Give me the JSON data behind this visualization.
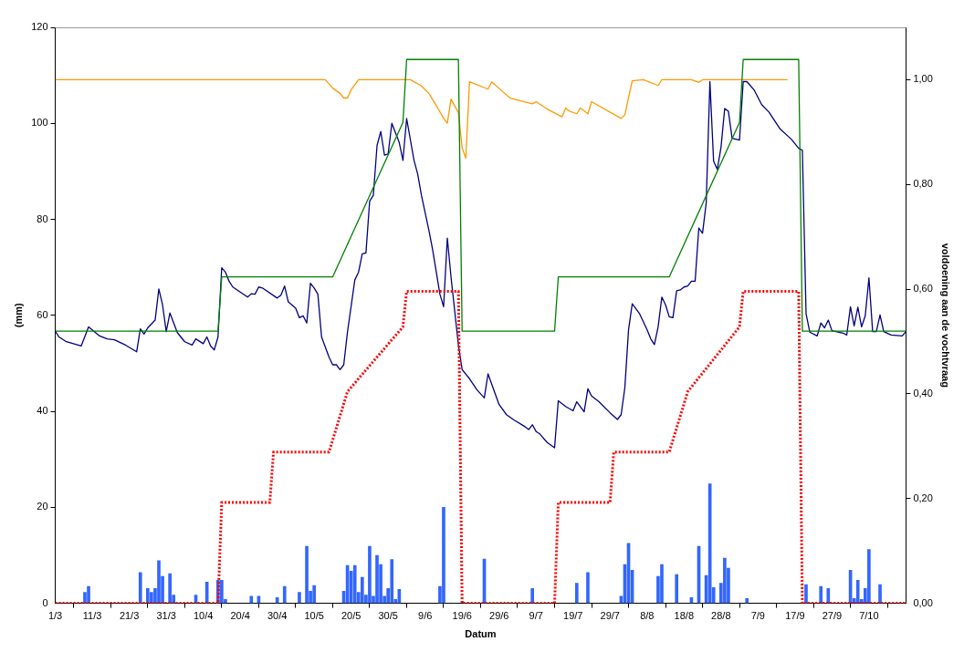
{
  "chart_data": {
    "type": "line",
    "xlabel": "Datum",
    "ylabel": "(mm)",
    "y2label": "voldoening aan de vochtvraag",
    "legend": false,
    "grid": false,
    "marker": "none",
    "xlim": [
      "--03-01",
      "--10-17"
    ],
    "xticks": [
      {
        "value": "--03-01",
        "label": "1/3"
      },
      {
        "value": "--03-11",
        "label": "11/3"
      },
      {
        "value": "--03-21",
        "label": "21/3"
      },
      {
        "value": "--03-31",
        "label": "31/3"
      },
      {
        "value": "--04-10",
        "label": "10/4"
      },
      {
        "value": "--04-20",
        "label": "20/4"
      },
      {
        "value": "--04-30",
        "label": "30/4"
      },
      {
        "value": "--05-10",
        "label": "10/5"
      },
      {
        "value": "--05-20",
        "label": "20/5"
      },
      {
        "value": "--05-30",
        "label": "30/5"
      },
      {
        "value": "--06-09",
        "label": "9/6"
      },
      {
        "value": "--06-19",
        "label": "19/6"
      },
      {
        "value": "--06-29",
        "label": "29/6"
      },
      {
        "value": "--07-09",
        "label": "9/7"
      },
      {
        "value": "--07-19",
        "label": "19/7"
      },
      {
        "value": "--07-29",
        "label": "29/7"
      },
      {
        "value": "--08-08",
        "label": "8/8"
      },
      {
        "value": "--08-18",
        "label": "18/8"
      },
      {
        "value": "--08-28",
        "label": "28/8"
      },
      {
        "value": "--09-07",
        "label": "7/9"
      },
      {
        "value": "--09-17",
        "label": "17/9"
      },
      {
        "value": "--09-27",
        "label": "27/9"
      },
      {
        "value": "--10-07",
        "label": "7/10"
      }
    ],
    "ylim": [
      0,
      120
    ],
    "yticks": [
      0,
      20,
      40,
      60,
      80,
      100,
      120
    ],
    "y2lim": [
      0,
      1.1
    ],
    "y2ticks": [
      {
        "value": 0,
        "label": "0,00"
      },
      {
        "value": 0.2,
        "label": "0,20"
      },
      {
        "value": 0.4,
        "label": "0,40"
      },
      {
        "value": 0.6,
        "label": "0,60"
      },
      {
        "value": 0.8,
        "label": "0,80"
      },
      {
        "value": 1,
        "label": "1,00"
      }
    ],
    "series": [
      {
        "type": "bar",
        "color": "#3366ff",
        "x": [
          "--03-09",
          "--03-10",
          "--03-24",
          "--03-26",
          "--03-27",
          "--03-28",
          "--03-29",
          "--03-30",
          "--04-01",
          "--04-02",
          "--04-08",
          "--04-11",
          "--04-14",
          "--04-15",
          "--04-16",
          "--04-23",
          "--04-25",
          "--04-30",
          "--05-02",
          "--05-06",
          "--05-08",
          "--05-09",
          "--05-10",
          "--05-18",
          "--05-19",
          "--05-20",
          "--05-21",
          "--05-22",
          "--05-23",
          "--05-24",
          "--05-25",
          "--05-26",
          "--05-27",
          "--05-28",
          "--05-29",
          "--05-30",
          "--05-31",
          "--06-01",
          "--06-02",
          "--06-13",
          "--06-14",
          "--06-25",
          "--07-08",
          "--07-20",
          "--07-23",
          "--08-01",
          "--08-02",
          "--08-03",
          "--08-04",
          "--08-11",
          "--08-12",
          "--08-16",
          "--08-20",
          "--08-22",
          "--08-24",
          "--08-25",
          "--08-26",
          "--08-28",
          "--08-29",
          "--08-30",
          "--09-04",
          "--09-20",
          "--09-24",
          "--09-26",
          "--10-02",
          "--10-03",
          "--10-04",
          "--10-05",
          "--10-06",
          "--10-07",
          "--10-10"
        ],
        "values": [
          2.3,
          3.5,
          6.4,
          3.1,
          2.3,
          3.1,
          8.9,
          5.6,
          6.2,
          1.7,
          1.7,
          4.4,
          4.8,
          4.8,
          0.8,
          1.5,
          1.5,
          1.2,
          3.5,
          2.3,
          11.9,
          2.5,
          3.7,
          2.5,
          7.9,
          6.7,
          7.9,
          2.3,
          5.4,
          1.7,
          11.9,
          1.5,
          10.0,
          8.1,
          1.5,
          3.1,
          9.1,
          0.8,
          2.9,
          3.5,
          20.0,
          9.2,
          3.1,
          4.2,
          6.4,
          1.5,
          8.1,
          12.5,
          6.9,
          5.6,
          8.1,
          6.0,
          1.2,
          11.9,
          5.8,
          24.9,
          3.3,
          4.2,
          9.4,
          7.3,
          1.0,
          3.9,
          3.5,
          3.1,
          6.9,
          1.0,
          4.8,
          0.8,
          3.1,
          11.2,
          3.9
        ]
      },
      {
        "color": "#008000",
        "line_style": "solid",
        "x": [
          "--03-01",
          "--04-14",
          "--04-15",
          "--05-15",
          "--06-03",
          "--06-04",
          "--06-18",
          "--06-19",
          "--07-14",
          "--07-15",
          "--08-14",
          "--09-02",
          "--09-03",
          "--09-18",
          "--09-19",
          "--10-17"
        ],
        "values": [
          56.7,
          56.7,
          68,
          68,
          100.2,
          113.3,
          113.3,
          56.7,
          56.7,
          68,
          68,
          100.2,
          113.3,
          113.3,
          56.7,
          56.7
        ]
      },
      {
        "color": "#ff0000",
        "line_style": "dotted",
        "x": [
          "--03-01",
          "--04-14",
          "--04-15",
          "--04-28",
          "--04-29",
          "--05-14",
          "--05-19",
          "--06-03",
          "--06-04",
          "--06-18",
          "--06-19",
          "--07-14",
          "--07-15",
          "--07-29",
          "--07-30",
          "--08-14",
          "--08-19",
          "--09-02",
          "--09-03",
          "--09-18",
          "--09-19",
          "--10-17"
        ],
        "values": [
          0,
          0,
          21,
          21,
          31.5,
          31.5,
          44.1,
          57.6,
          65,
          65,
          0,
          0,
          21,
          21,
          31.5,
          31.5,
          44.1,
          57.6,
          65,
          65,
          0,
          0
        ]
      },
      {
        "color": "#000080",
        "line_style": "solid",
        "x": [
          "--03-01",
          "--03-02",
          "--03-04",
          "--03-08",
          "--03-10",
          "--03-13",
          "--03-15",
          "--03-17",
          "--03-20",
          "--03-23",
          "--03-24",
          "--03-25",
          "--03-26",
          "--03-28",
          "--03-29",
          "--03-30",
          "--03-31",
          "--04-01",
          "--04-03",
          "--04-05",
          "--04-07",
          "--04-08",
          "--04-10",
          "--04-11",
          "--04-12",
          "--04-13",
          "--04-14",
          "--04-15",
          "--04-16",
          "--04-17",
          "--04-18",
          "--04-22",
          "--04-23",
          "--04-24",
          "--04-25",
          "--04-26",
          "--04-30",
          "--05-01",
          "--05-02",
          "--05-03",
          "--05-05",
          "--05-06",
          "--05-07",
          "--05-08",
          "--05-09",
          "--05-10",
          "--05-11",
          "--05-12",
          "--05-14",
          "--05-15",
          "--05-16",
          "--05-17",
          "--05-18",
          "--05-19",
          "--05-21",
          "--05-22",
          "--05-23",
          "--05-24",
          "--05-25",
          "--05-26",
          "--05-27",
          "--05-28",
          "--05-29",
          "--05-30",
          "--05-31",
          "--06-02",
          "--06-03",
          "--06-04",
          "--06-06",
          "--06-07",
          "--06-08",
          "--06-10",
          "--06-11",
          "--06-13",
          "--06-14",
          "--06-15",
          "--06-16",
          "--06-18",
          "--06-19",
          "--06-21",
          "--06-23",
          "--06-25",
          "--06-26",
          "--06-29",
          "--07-01",
          "--07-03",
          "--07-06",
          "--07-07",
          "--07-08",
          "--07-09",
          "--07-10",
          "--07-12",
          "--07-14",
          "--07-15",
          "--07-17",
          "--07-19",
          "--07-20",
          "--07-22",
          "--07-23",
          "--07-24",
          "--07-26",
          "--07-29",
          "--07-31",
          "--08-01",
          "--08-02",
          "--08-03",
          "--08-04",
          "--08-06",
          "--08-08",
          "--08-09",
          "--08-10",
          "--08-11",
          "--08-12",
          "--08-13",
          "--08-14",
          "--08-15",
          "--08-16",
          "--08-17",
          "--08-18",
          "--08-19",
          "--08-20",
          "--08-21",
          "--08-22",
          "--08-23",
          "--08-24",
          "--08-25",
          "--08-26",
          "--08-27",
          "--08-28",
          "--08-29",
          "--08-30",
          "--08-31",
          "--09-02",
          "--09-03",
          "--09-04",
          "--09-06",
          "--09-08",
          "--09-10",
          "--09-13",
          "--09-16",
          "--09-18",
          "--09-19",
          "--09-20",
          "--09-21",
          "--09-23",
          "--09-24",
          "--09-25",
          "--09-26",
          "--09-27",
          "--09-30",
          "--10-01",
          "--10-02",
          "--10-03",
          "--10-04",
          "--10-05",
          "--10-06",
          "--10-07",
          "--10-08",
          "--10-09",
          "--10-10",
          "--10-11",
          "--10-13",
          "--10-16",
          "--10-17"
        ],
        "values": [
          56.7,
          55.5,
          54.5,
          53.6,
          57.6,
          55.7,
          55.1,
          54.9,
          53.8,
          52.4,
          57.2,
          56.1,
          57.4,
          59.0,
          65.5,
          62.2,
          56.6,
          60.5,
          56.4,
          54.5,
          53.8,
          55.1,
          54.1,
          55.5,
          53.6,
          52.8,
          55.5,
          69.9,
          69.0,
          67.1,
          65.9,
          63.8,
          64.5,
          64.4,
          65.9,
          65.7,
          63.6,
          64.2,
          66.1,
          62.8,
          61.5,
          59.5,
          59.9,
          58.4,
          66.7,
          65.7,
          64.4,
          55.5,
          51.3,
          49.7,
          49.7,
          48.7,
          49.7,
          56.5,
          67.4,
          69.0,
          72.8,
          73.0,
          83.8,
          85.0,
          95.4,
          98.3,
          93.4,
          93.6,
          100.0,
          96.0,
          92.3,
          101.0,
          92.3,
          89.4,
          85.0,
          77.8,
          73.8,
          64.4,
          61.8,
          76.1,
          68.0,
          53.8,
          48.7,
          46.8,
          44.5,
          42.8,
          47.8,
          41.4,
          39.3,
          38.2,
          36.8,
          36.2,
          37.2,
          35.8,
          35.3,
          33.5,
          32.4,
          42.2,
          41.0,
          40.1,
          42.0,
          39.9,
          44.7,
          43.2,
          42.0,
          39.7,
          38.3,
          39.3,
          44.9,
          57.0,
          62.4,
          60.3,
          57.0,
          55.1,
          53.9,
          57.6,
          63.8,
          62.2,
          59.7,
          59.5,
          65.1,
          65.3,
          65.9,
          66.1,
          67.1,
          67.1,
          78.2,
          77.1,
          83.4,
          108.7,
          92.1,
          90.4,
          95.0,
          103.1,
          102.5,
          96.9,
          96.5,
          108.7,
          108.7,
          106.9,
          103.9,
          102.3,
          98.8,
          96.7,
          94.8,
          94.4,
          60.3,
          56.5,
          55.7,
          58.4,
          57.4,
          59.0,
          56.8,
          56.3,
          55.9,
          61.8,
          57.8,
          61.7,
          57.6,
          59.9,
          67.8,
          56.6,
          56.6,
          60.1,
          56.6,
          55.9,
          55.7,
          56.6
        ]
      },
      {
        "color": "#ff9900",
        "line_style": "solid",
        "axis": "y2",
        "x": [
          "--03-01",
          "--05-13",
          "--05-15",
          "--05-17",
          "--05-18",
          "--05-19",
          "--05-20",
          "--05-22",
          "--06-05",
          "--06-08",
          "--06-10",
          "--06-12",
          "--06-14",
          "--06-15",
          "--06-16",
          "--06-18",
          "--06-19",
          "--06-20",
          "--06-21",
          "--06-26",
          "--06-27",
          "--06-30",
          "--07-02",
          "--07-08",
          "--07-09",
          "--07-12",
          "--07-16",
          "--07-17",
          "--07-18",
          "--07-20",
          "--07-21",
          "--07-23",
          "--07-24",
          "--08-01",
          "--08-02",
          "--08-04",
          "--08-07",
          "--08-11",
          "--08-12",
          "--08-20",
          "--08-22",
          "--08-23",
          "--09-15"
        ],
        "values": [
          1.0,
          1.0,
          0.984,
          0.974,
          0.965,
          0.965,
          0.981,
          1.0,
          1.0,
          0.988,
          0.974,
          0.951,
          0.926,
          0.917,
          0.963,
          0.937,
          0.87,
          0.85,
          0.996,
          0.982,
          0.996,
          0.977,
          0.965,
          0.954,
          0.958,
          0.944,
          0.929,
          0.946,
          0.94,
          0.935,
          0.946,
          0.935,
          0.958,
          0.926,
          0.933,
          0.998,
          1.0,
          0.989,
          1.0,
          1.0,
          0.995,
          1.0,
          1.0
        ]
      }
    ]
  }
}
